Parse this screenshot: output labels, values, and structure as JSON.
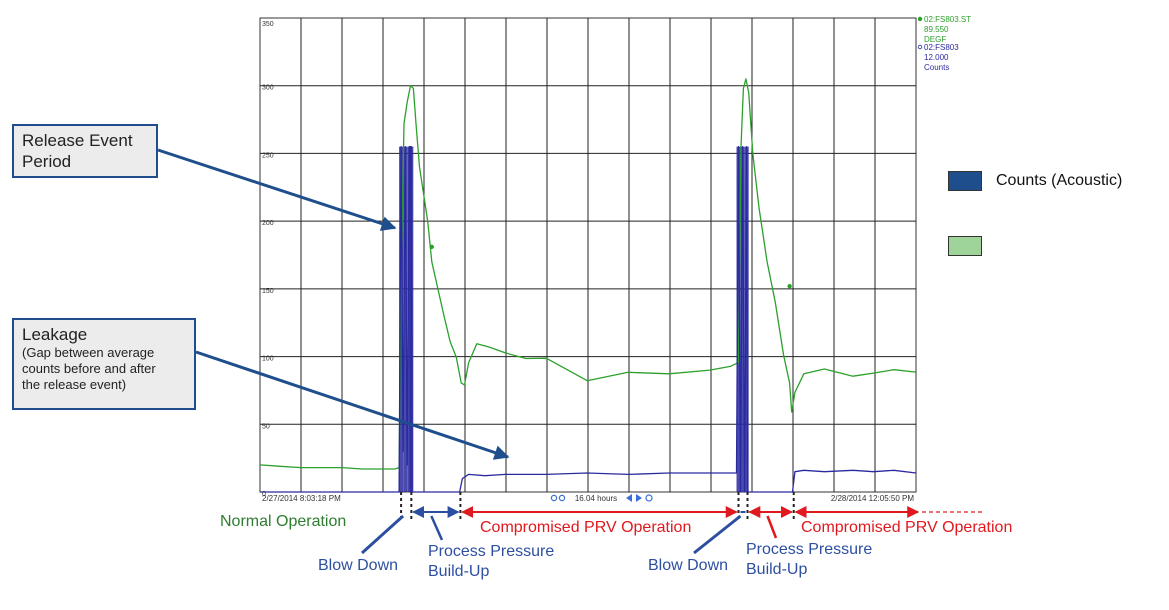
{
  "colors": {
    "counts": "#2a2aa0",
    "temperature": "#2ca02c",
    "normal": "#2e7d32",
    "compromised": "#e0191e",
    "event": "#2d4fa1",
    "callout_border": "#1f4e8c",
    "legend_counts": "#1f4e8c",
    "legend_temp": "#9ed49a"
  },
  "legend": {
    "items": [
      {
        "label": "Counts (Acoustic)",
        "color": "#1f4e8c"
      },
      {
        "label": "",
        "color": "#9ed49a"
      }
    ]
  },
  "callouts": {
    "release": {
      "title": "Release Event\nPeriod"
    },
    "leakage": {
      "title": "Leakage",
      "subtitle": "(Gap between average\ncounts before and after\nthe release event)"
    }
  },
  "annotations": {
    "normal_operation": "Normal Operation",
    "compromised_1": "Compromised PRV Operation",
    "compromised_2": "Compromised PRV Operation",
    "blow_down_1": "Blow Down",
    "blow_down_2": "Blow Down",
    "build_up_1": "Process Pressure\nBuild-Up",
    "build_up_2": "Process Pressure\nBuild-Up"
  },
  "chart_data": {
    "type": "line",
    "ylim": [
      0,
      350
    ],
    "yticks": [
      0,
      50,
      100,
      150,
      200,
      250,
      300,
      350
    ],
    "ytick_labels": [
      "0",
      "50",
      "100",
      "150",
      "200",
      "250",
      "300",
      "350"
    ],
    "xlim": [
      0,
      16.04
    ],
    "x_start_label": "2/27/2014 8:03:18 PM",
    "x_end_label": "2/28/2014 12:05:50 PM",
    "x_center_label": "16.04 hours",
    "grid": true,
    "series_tags": [
      {
        "tag": "02:FS803.ST",
        "value": "89.550",
        "unit": "DEGF",
        "color": "#2ca02c"
      },
      {
        "tag": "02:FS803",
        "value": "12.000",
        "unit": "Counts",
        "color": "#2a2aa0"
      }
    ],
    "event_hours": [
      3.45,
      3.7,
      4.9,
      11.7,
      11.92,
      13.05
    ],
    "series": [
      {
        "name": "02:FS803.ST",
        "unit": "DEGF",
        "x": [
          0,
          0.5,
          1.0,
          1.5,
          2.0,
          2.5,
          3.0,
          3.3,
          3.4,
          3.45,
          3.52,
          3.6,
          3.68,
          3.75,
          3.82,
          3.9,
          4.0,
          4.1,
          4.2,
          4.35,
          4.5,
          4.65,
          4.8,
          4.92,
          5.0,
          5.1,
          5.3,
          5.6,
          6.0,
          6.5,
          7.0,
          8.0,
          9.0,
          10.0,
          11.0,
          11.5,
          11.7,
          11.76,
          11.82,
          11.88,
          11.95,
          12.05,
          12.2,
          12.4,
          12.6,
          12.8,
          12.95,
          13.0,
          13.08,
          13.3,
          13.8,
          14.5,
          15.0,
          15.5,
          16.04
        ],
        "y": [
          20,
          19,
          18,
          18,
          18,
          17,
          17,
          17,
          18,
          150,
          272,
          288,
          300,
          298,
          270,
          240,
          220,
          200,
          170,
          150,
          130,
          110,
          100,
          82,
          80,
          95,
          108,
          106,
          103,
          100,
          100,
          82,
          87,
          86,
          90,
          94,
          97,
          255,
          298,
          305,
          295,
          250,
          210,
          170,
          140,
          100,
          80,
          60,
          75,
          88,
          90,
          84,
          87,
          91,
          90
        ]
      },
      {
        "name": "02:FS803",
        "unit": "Counts",
        "x": [
          0,
          1,
          2,
          3,
          3.4,
          3.45,
          3.5,
          3.55,
          3.6,
          3.65,
          3.7,
          3.72,
          4.0,
          4.5,
          4.88,
          4.95,
          5.1,
          5.5,
          6,
          7,
          8,
          9,
          10,
          11,
          11.65,
          11.7,
          11.75,
          11.8,
          11.85,
          11.9,
          11.92,
          12.3,
          12.8,
          13.02,
          13.08,
          13.3,
          13.8,
          14.5,
          15.0,
          15.5,
          16.04
        ],
        "y": [
          0,
          0,
          0,
          0,
          0,
          255,
          30,
          255,
          20,
          255,
          255,
          0,
          0,
          0,
          0,
          10,
          13,
          12,
          13,
          13,
          14,
          13,
          14,
          14,
          14,
          255,
          0,
          255,
          0,
          255,
          0,
          0,
          0,
          0,
          15,
          16,
          15,
          16,
          15,
          16,
          14
        ]
      }
    ]
  }
}
